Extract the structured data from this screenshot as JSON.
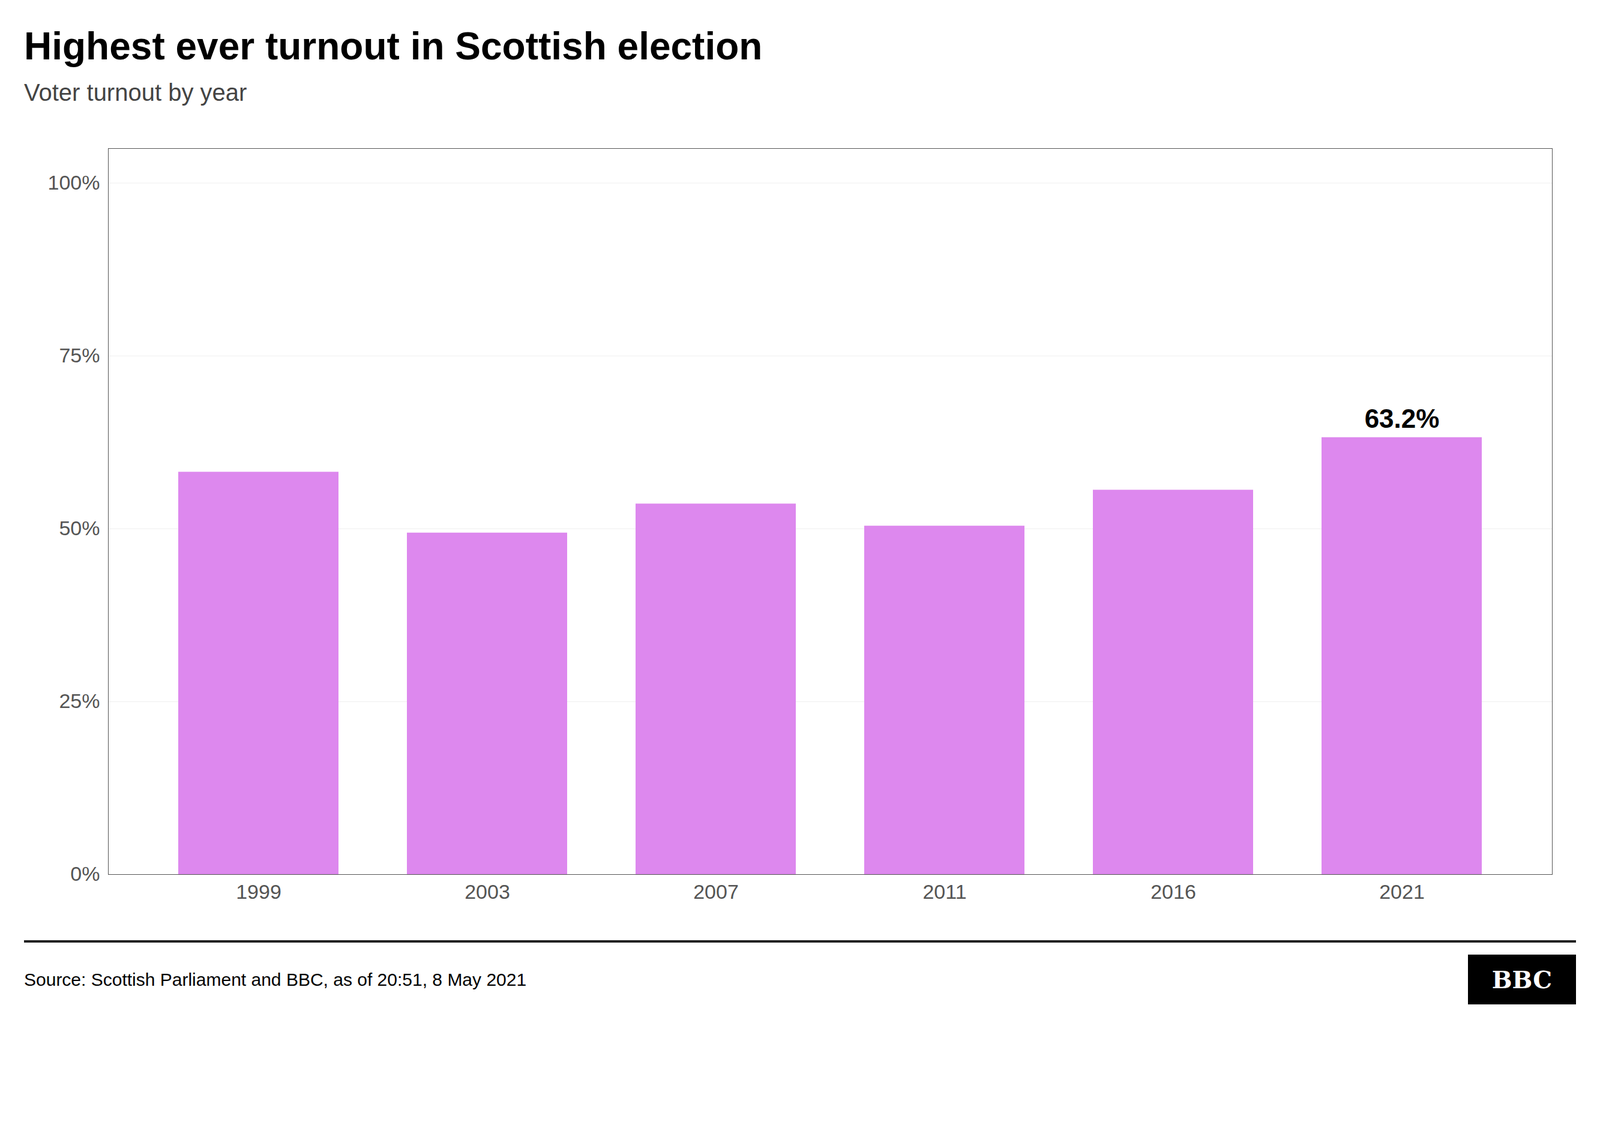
{
  "chart_data": {
    "type": "bar",
    "title": "Highest ever turnout in Scottish election",
    "subtitle": "Voter turnout by year",
    "categories": [
      "1999",
      "2003",
      "2007",
      "2011",
      "2016",
      "2021"
    ],
    "values": [
      58.2,
      49.4,
      53.6,
      50.4,
      55.6,
      63.2
    ],
    "color": "#dd88ee",
    "ylim": [
      0,
      105
    ],
    "yticks": [
      {
        "value": 0,
        "label": "0%"
      },
      {
        "value": 25,
        "label": "25%"
      },
      {
        "value": 50,
        "label": "50%"
      },
      {
        "value": 75,
        "label": "75%"
      },
      {
        "value": 100,
        "label": "100%"
      }
    ],
    "grid": true,
    "annotations": [
      {
        "x": "2021",
        "y": 63.2,
        "text": "63.2%"
      }
    ],
    "source": "Source: Scottish Parliament and BBC, as of 20:51,  8 May 2021",
    "logo": "BBC"
  }
}
